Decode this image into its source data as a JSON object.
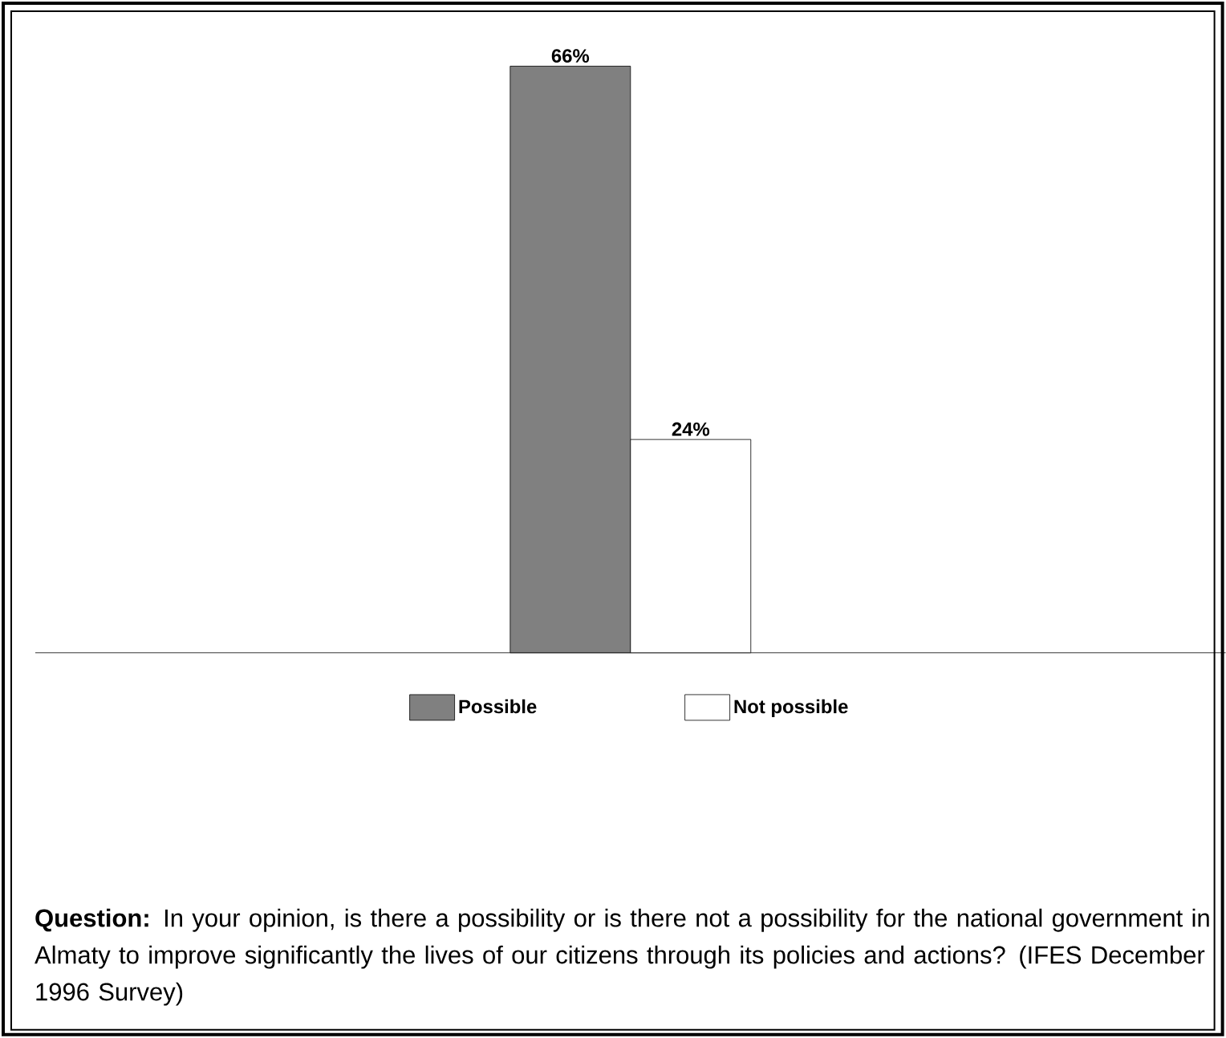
{
  "chart_data": {
    "type": "bar",
    "categories": [
      null
    ],
    "series": [
      {
        "name": "Possible",
        "color": "#808080",
        "values": [
          66
        ],
        "value_labels": [
          "66%"
        ]
      },
      {
        "name": "Not possible",
        "color": "#ffffff",
        "values": [
          24
        ],
        "value_labels": [
          "24%"
        ]
      }
    ],
    "legend": "bottom",
    "annotations": [
      "**Question:** In your opinion, is there a possibility or is there not a possibility for the national government in Almaty to improve significantly the lives of our citizens through its policies and actions?  (IFES December 1996 Survey)"
    ]
  }
}
